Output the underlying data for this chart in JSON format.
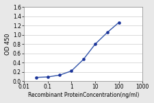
{
  "x_values": [
    0.032,
    0.1,
    0.32,
    1.0,
    3.2,
    10.0,
    32.0,
    100.0
  ],
  "y_values": [
    0.08,
    0.09,
    0.13,
    0.22,
    0.47,
    0.8,
    1.05,
    1.27
  ],
  "line_color": "#3355aa",
  "marker_color": "#1a3399",
  "marker_size": 3,
  "line_width": 1.0,
  "xlabel": "Recombinant ProteinConcentration(ng/ml)",
  "ylabel": "OD 450",
  "xlim": [
    0.01,
    1000
  ],
  "ylim": [
    0,
    1.6
  ],
  "yticks": [
    0,
    0.2,
    0.4,
    0.6,
    0.8,
    1.0,
    1.2,
    1.4,
    1.6
  ],
  "xticks": [
    0.01,
    0.1,
    1,
    10,
    100,
    1000
  ],
  "xtick_labels": [
    "0.01",
    "0.1",
    "1",
    "10",
    "100",
    "1000"
  ],
  "xlabel_fontsize": 5.5,
  "ylabel_fontsize": 6,
  "tick_fontsize": 5.5,
  "background_color": "#e8e8e8",
  "plot_bg_color": "#ffffff",
  "grid_color": "#cccccc"
}
